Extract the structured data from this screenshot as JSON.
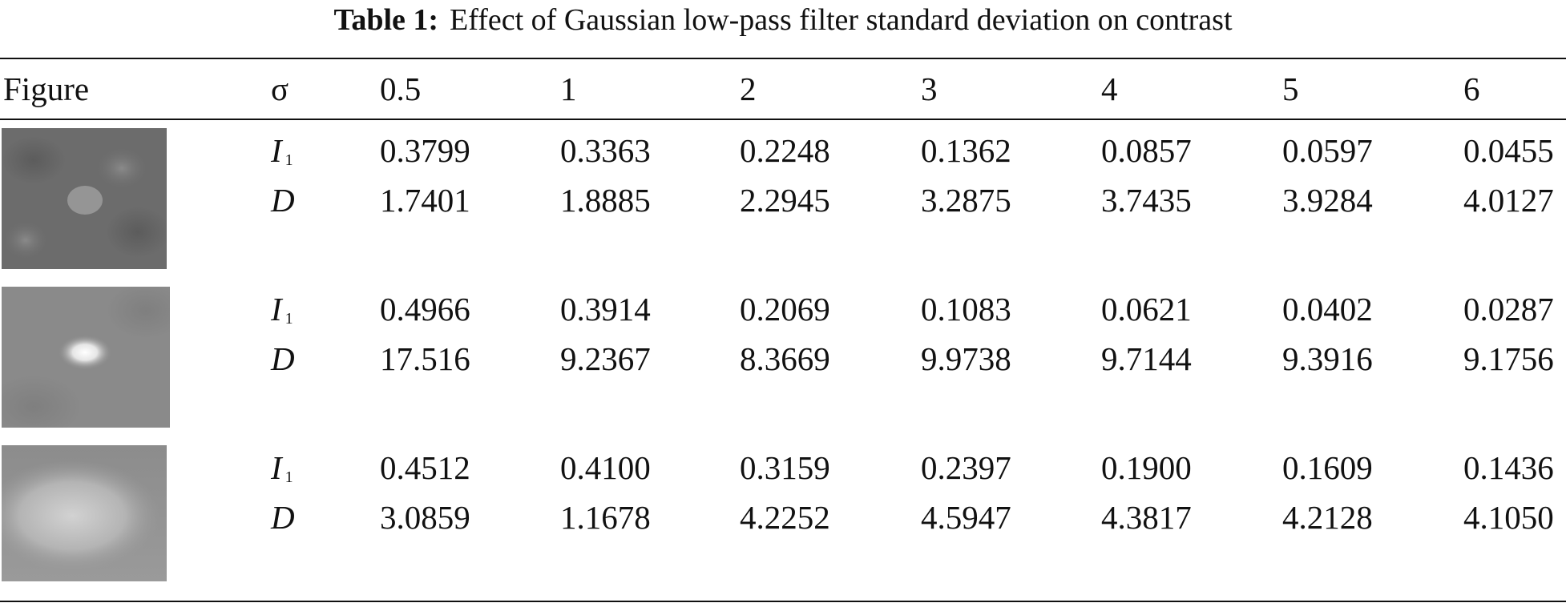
{
  "caption": {
    "label": "Table 1:",
    "text": "Effect of Gaussian low-pass filter standard deviation on contrast"
  },
  "header": {
    "figure": "Figure",
    "sigma": "σ",
    "values": [
      "0.5",
      "1",
      "2",
      "3",
      "4",
      "5",
      "6"
    ]
  },
  "rows": [
    {
      "i_label": "I",
      "i_sub": "1",
      "d_label": "D",
      "i": [
        "0.3799",
        "0.3363",
        "0.2248",
        "0.1362",
        "0.0857",
        "0.0597",
        "0.0455"
      ],
      "d": [
        "1.7401",
        "1.8885",
        "2.2945",
        "3.2875",
        "3.7435",
        "3.9284",
        "4.0127"
      ]
    },
    {
      "i_label": "I",
      "i_sub": "1",
      "d_label": "D",
      "i": [
        "0.4966",
        "0.3914",
        "0.2069",
        "0.1083",
        "0.0621",
        "0.0402",
        "0.0287"
      ],
      "d": [
        "17.516",
        "9.2367",
        "8.3669",
        "9.9738",
        "9.7144",
        "9.3916",
        "9.1756"
      ]
    },
    {
      "i_label": "I",
      "i_sub": "1",
      "d_label": "D",
      "i": [
        "0.4512",
        "0.4100",
        "0.3159",
        "0.2397",
        "0.1900",
        "0.1609",
        "0.1436"
      ],
      "d": [
        "3.0859",
        "1.1678",
        "4.2252",
        "4.5947",
        "4.3817",
        "4.2128",
        "4.1050"
      ]
    }
  ]
}
